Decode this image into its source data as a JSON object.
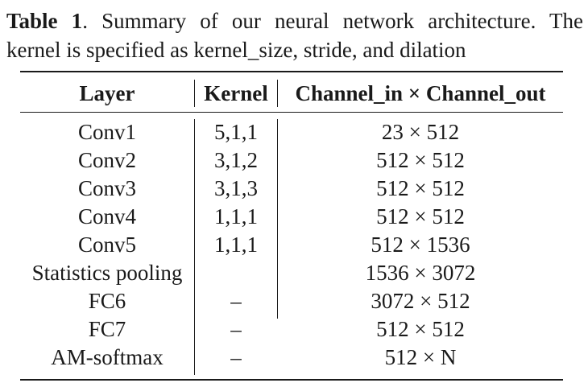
{
  "caption": {
    "label": "Table 1",
    "line1_rest": ". Summary of our neural network architecture. The",
    "line2": "kernel is specified as kernel_size, stride, and dilation"
  },
  "table": {
    "headers": [
      "Layer",
      "Kernel",
      "Channel_in × Channel_out"
    ],
    "rows": [
      [
        "Conv1",
        "5,1,1",
        "23 × 512"
      ],
      [
        "Conv2",
        "3,1,2",
        "512 × 512"
      ],
      [
        "Conv3",
        "3,1,3",
        "512 × 512"
      ],
      [
        "Conv4",
        "1,1,1",
        "512 × 512"
      ],
      [
        "Conv5",
        "1,1,1",
        "512 × 1536"
      ],
      [
        "Statistics pooling",
        "",
        "1536 × 3072"
      ],
      [
        "FC6",
        "–",
        "3072 × 512"
      ],
      [
        "FC7",
        "–",
        "512 × 512"
      ],
      [
        "AM-softmax",
        "–",
        "512 × N"
      ]
    ]
  }
}
